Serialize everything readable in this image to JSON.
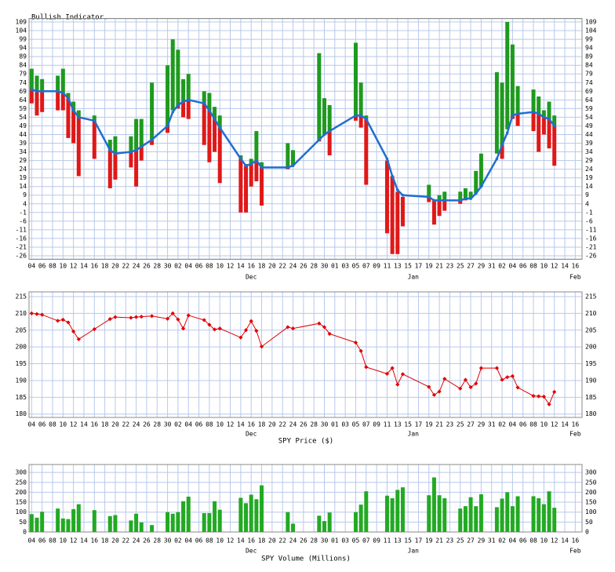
{
  "chart_data": [
    {
      "type": "range_bar",
      "title": "Bullish Indicator.",
      "up_color": "#1e9a1e",
      "down_color": "#e01818",
      "line_color": "#1f6fd0",
      "xlim": [
        -0.5,
        105.3
      ],
      "ylim": [
        -28,
        111
      ],
      "grid": true,
      "xticks": [
        {
          "value": 0,
          "label": "04"
        },
        {
          "value": 2,
          "label": "06"
        },
        {
          "value": 4,
          "label": "08"
        },
        {
          "value": 6,
          "label": "10"
        },
        {
          "value": 8,
          "label": "12"
        },
        {
          "value": 10,
          "label": "14"
        },
        {
          "value": 12,
          "label": "16"
        },
        {
          "value": 14,
          "label": "18"
        },
        {
          "value": 16,
          "label": "20"
        },
        {
          "value": 18,
          "label": "22"
        },
        {
          "value": 20,
          "label": "24"
        },
        {
          "value": 22,
          "label": "26"
        },
        {
          "value": 24,
          "label": "28"
        },
        {
          "value": 26,
          "label": "30"
        },
        {
          "value": 28,
          "label": "02"
        },
        {
          "value": 30,
          "label": "04"
        },
        {
          "value": 32,
          "label": "06"
        },
        {
          "value": 34,
          "label": "08"
        },
        {
          "value": 36,
          "label": "10"
        },
        {
          "value": 38,
          "label": "12"
        },
        {
          "value": 40,
          "label": "14"
        },
        {
          "value": 42,
          "label": "16"
        },
        {
          "value": 44,
          "label": "18"
        },
        {
          "value": 46,
          "label": "20"
        },
        {
          "value": 48,
          "label": "22"
        },
        {
          "value": 50,
          "label": "24"
        },
        {
          "value": 52,
          "label": "26"
        },
        {
          "value": 54,
          "label": "28"
        },
        {
          "value": 56,
          "label": "30"
        },
        {
          "value": 58,
          "label": "01"
        },
        {
          "value": 60,
          "label": "03"
        },
        {
          "value": 62,
          "label": "05"
        },
        {
          "value": 64,
          "label": "07"
        },
        {
          "value": 66,
          "label": "09"
        },
        {
          "value": 68,
          "label": "11"
        },
        {
          "value": 70,
          "label": "13"
        },
        {
          "value": 72,
          "label": "15"
        },
        {
          "value": 74,
          "label": "17"
        },
        {
          "value": 76,
          "label": "19"
        },
        {
          "value": 78,
          "label": "21"
        },
        {
          "value": 80,
          "label": "23"
        },
        {
          "value": 82,
          "label": "25"
        },
        {
          "value": 84,
          "label": "27"
        },
        {
          "value": 86,
          "label": "29"
        },
        {
          "value": 88,
          "label": "31"
        },
        {
          "value": 90,
          "label": "02"
        },
        {
          "value": 92,
          "label": "04"
        },
        {
          "value": 94,
          "label": "06"
        },
        {
          "value": 96,
          "label": "08"
        },
        {
          "value": 98,
          "label": "10"
        },
        {
          "value": 100,
          "label": "12"
        },
        {
          "value": 102,
          "label": "14"
        },
        {
          "value": 104,
          "label": "16"
        }
      ],
      "month_labels": [
        {
          "value": 42,
          "label": "Dec"
        },
        {
          "value": 73,
          "label": "Jan"
        },
        {
          "value": 104,
          "label": "Feb"
        }
      ],
      "yticks": [
        109,
        104,
        99,
        94,
        89,
        84,
        79,
        74,
        69,
        64,
        59,
        54,
        49,
        44,
        39,
        34,
        29,
        24,
        19,
        14,
        9,
        4,
        -1,
        -6,
        -11,
        -16,
        -21,
        -26
      ],
      "x": [
        0,
        1,
        2,
        5,
        6,
        7,
        8,
        9,
        12,
        15,
        16,
        19,
        20,
        21,
        23,
        26,
        27,
        28,
        29,
        30,
        33,
        34,
        35,
        36,
        40,
        41,
        42,
        43,
        44,
        49,
        50,
        55,
        56,
        57,
        62,
        63,
        64,
        68,
        69,
        70,
        71,
        76,
        77,
        78,
        79,
        82,
        83,
        84,
        85,
        86,
        89,
        90,
        91,
        92,
        93,
        96,
        97,
        98,
        99,
        100
      ],
      "high": [
        82,
        78,
        76,
        78,
        82,
        68,
        63,
        58,
        55,
        41,
        43,
        43,
        53,
        53,
        74,
        84,
        99,
        93,
        76,
        79,
        69,
        68,
        60,
        55,
        32,
        27,
        30,
        46,
        28,
        39,
        35,
        91,
        65,
        61,
        97,
        74,
        55,
        29,
        20,
        11,
        8,
        15,
        6,
        9,
        11,
        11,
        13,
        11,
        23,
        33,
        80,
        74,
        109,
        96,
        72,
        70,
        66,
        58,
        63,
        55
      ],
      "low": [
        62,
        55,
        57,
        58,
        58,
        42,
        39,
        20,
        30,
        13,
        18,
        25,
        14,
        29,
        38,
        45,
        58,
        59,
        54,
        53,
        38,
        28,
        34,
        16,
        -1,
        -1,
        14,
        17,
        3,
        24,
        26,
        40,
        44,
        32,
        52,
        48,
        15,
        -13,
        -25,
        -25,
        -9,
        5,
        -8,
        -3,
        0,
        4,
        6,
        7,
        10,
        14,
        33,
        30,
        47,
        53,
        49,
        46,
        34,
        44,
        36,
        26
      ],
      "average": [
        70,
        69,
        69,
        69,
        68,
        65,
        58,
        54,
        52,
        35,
        33,
        34,
        35,
        37,
        41,
        49,
        57,
        61,
        63,
        64,
        62,
        58,
        53,
        48,
        30,
        26,
        27,
        29,
        25,
        25,
        26,
        41,
        44,
        46,
        55,
        55,
        53,
        30,
        20,
        12,
        9,
        8,
        6,
        6,
        6,
        6,
        7,
        7,
        10,
        14,
        30,
        38,
        45,
        55,
        56,
        57,
        56,
        54,
        53,
        49
      ]
    },
    {
      "type": "line",
      "title": "SPY Price ($)",
      "color": "#e00000",
      "xlim": [
        -0.5,
        105.3
      ],
      "ylim": [
        179,
        216.4
      ],
      "grid": true,
      "xticks": [
        {
          "value": 0,
          "label": "04"
        },
        {
          "value": 2,
          "label": "06"
        },
        {
          "value": 4,
          "label": "08"
        },
        {
          "value": 6,
          "label": "10"
        },
        {
          "value": 8,
          "label": "12"
        },
        {
          "value": 10,
          "label": "14"
        },
        {
          "value": 12,
          "label": "16"
        },
        {
          "value": 14,
          "label": "18"
        },
        {
          "value": 16,
          "label": "20"
        },
        {
          "value": 18,
          "label": "22"
        },
        {
          "value": 20,
          "label": "24"
        },
        {
          "value": 22,
          "label": "26"
        },
        {
          "value": 24,
          "label": "28"
        },
        {
          "value": 26,
          "label": "30"
        },
        {
          "value": 28,
          "label": "02"
        },
        {
          "value": 30,
          "label": "04"
        },
        {
          "value": 32,
          "label": "06"
        },
        {
          "value": 34,
          "label": "08"
        },
        {
          "value": 36,
          "label": "10"
        },
        {
          "value": 38,
          "label": "12"
        },
        {
          "value": 40,
          "label": "14"
        },
        {
          "value": 42,
          "label": "16"
        },
        {
          "value": 44,
          "label": "18"
        },
        {
          "value": 46,
          "label": "20"
        },
        {
          "value": 48,
          "label": "22"
        },
        {
          "value": 50,
          "label": "24"
        },
        {
          "value": 52,
          "label": "26"
        },
        {
          "value": 54,
          "label": "28"
        },
        {
          "value": 56,
          "label": "30"
        },
        {
          "value": 58,
          "label": "01"
        },
        {
          "value": 60,
          "label": "03"
        },
        {
          "value": 62,
          "label": "05"
        },
        {
          "value": 64,
          "label": "07"
        },
        {
          "value": 66,
          "label": "09"
        },
        {
          "value": 68,
          "label": "11"
        },
        {
          "value": 70,
          "label": "13"
        },
        {
          "value": 72,
          "label": "15"
        },
        {
          "value": 74,
          "label": "17"
        },
        {
          "value": 76,
          "label": "19"
        },
        {
          "value": 78,
          "label": "21"
        },
        {
          "value": 80,
          "label": "23"
        },
        {
          "value": 82,
          "label": "25"
        },
        {
          "value": 84,
          "label": "27"
        },
        {
          "value": 86,
          "label": "29"
        },
        {
          "value": 88,
          "label": "31"
        },
        {
          "value": 90,
          "label": "02"
        },
        {
          "value": 92,
          "label": "04"
        },
        {
          "value": 94,
          "label": "06"
        },
        {
          "value": 96,
          "label": "08"
        },
        {
          "value": 98,
          "label": "10"
        },
        {
          "value": 100,
          "label": "12"
        },
        {
          "value": 102,
          "label": "14"
        },
        {
          "value": 104,
          "label": "16"
        }
      ],
      "month_labels": [
        {
          "value": 42,
          "label": "Dec"
        },
        {
          "value": 73,
          "label": "Jan"
        },
        {
          "value": 104,
          "label": "Feb"
        }
      ],
      "yticks": [
        215,
        210,
        205,
        200,
        195,
        190,
        185,
        180
      ],
      "x": [
        0,
        1,
        2,
        5,
        6,
        7,
        8,
        9,
        12,
        15,
        16,
        19,
        20,
        21,
        23,
        26,
        27,
        28,
        29,
        30,
        33,
        34,
        35,
        36,
        40,
        41,
        42,
        43,
        44,
        49,
        50,
        55,
        56,
        57,
        62,
        63,
        64,
        68,
        69,
        70,
        71,
        76,
        77,
        78,
        79,
        82,
        83,
        84,
        85,
        86,
        89,
        90,
        91,
        92,
        93,
        96,
        97,
        98,
        99,
        100
      ],
      "values": [
        210.0,
        209.8,
        209.6,
        207.8,
        208.1,
        207.3,
        204.6,
        202.3,
        205.3,
        208.3,
        208.9,
        208.7,
        208.9,
        209.0,
        209.2,
        208.4,
        210.0,
        208.2,
        205.5,
        209.4,
        208.0,
        206.6,
        205.2,
        205.5,
        202.8,
        205.0,
        207.7,
        204.8,
        200.1,
        205.9,
        205.5,
        207.0,
        205.9,
        203.9,
        201.3,
        198.8,
        194.0,
        192.0,
        193.7,
        188.8,
        191.9,
        188.1,
        185.7,
        186.7,
        190.5,
        187.6,
        190.2,
        188.0,
        189.1,
        193.7,
        193.7,
        190.2,
        191.0,
        191.3,
        187.9,
        185.4,
        185.3,
        185.2,
        182.9,
        186.6
      ]
    },
    {
      "type": "bar",
      "title": "SPY Volume (Millions)",
      "color": "#22aa22",
      "xlim": [
        -0.5,
        105.3
      ],
      "ylim": [
        0,
        340
      ],
      "grid": true,
      "xticks": [
        {
          "value": 0,
          "label": "04"
        },
        {
          "value": 2,
          "label": "06"
        },
        {
          "value": 4,
          "label": "08"
        },
        {
          "value": 6,
          "label": "10"
        },
        {
          "value": 8,
          "label": "12"
        },
        {
          "value": 10,
          "label": "14"
        },
        {
          "value": 12,
          "label": "16"
        },
        {
          "value": 14,
          "label": "18"
        },
        {
          "value": 16,
          "label": "20"
        },
        {
          "value": 18,
          "label": "22"
        },
        {
          "value": 20,
          "label": "24"
        },
        {
          "value": 22,
          "label": "26"
        },
        {
          "value": 24,
          "label": "28"
        },
        {
          "value": 26,
          "label": "30"
        },
        {
          "value": 28,
          "label": "02"
        },
        {
          "value": 30,
          "label": "04"
        },
        {
          "value": 32,
          "label": "06"
        },
        {
          "value": 34,
          "label": "08"
        },
        {
          "value": 36,
          "label": "10"
        },
        {
          "value": 38,
          "label": "12"
        },
        {
          "value": 40,
          "label": "14"
        },
        {
          "value": 42,
          "label": "16"
        },
        {
          "value": 44,
          "label": "18"
        },
        {
          "value": 46,
          "label": "20"
        },
        {
          "value": 48,
          "label": "22"
        },
        {
          "value": 50,
          "label": "24"
        },
        {
          "value": 52,
          "label": "26"
        },
        {
          "value": 54,
          "label": "28"
        },
        {
          "value": 56,
          "label": "30"
        },
        {
          "value": 58,
          "label": "01"
        },
        {
          "value": 60,
          "label": "03"
        },
        {
          "value": 62,
          "label": "05"
        },
        {
          "value": 64,
          "label": "07"
        },
        {
          "value": 66,
          "label": "09"
        },
        {
          "value": 68,
          "label": "11"
        },
        {
          "value": 70,
          "label": "13"
        },
        {
          "value": 72,
          "label": "15"
        },
        {
          "value": 74,
          "label": "17"
        },
        {
          "value": 76,
          "label": "19"
        },
        {
          "value": 78,
          "label": "21"
        },
        {
          "value": 80,
          "label": "23"
        },
        {
          "value": 82,
          "label": "25"
        },
        {
          "value": 84,
          "label": "27"
        },
        {
          "value": 86,
          "label": "29"
        },
        {
          "value": 88,
          "label": "31"
        },
        {
          "value": 90,
          "label": "02"
        },
        {
          "value": 92,
          "label": "04"
        },
        {
          "value": 94,
          "label": "06"
        },
        {
          "value": 96,
          "label": "08"
        },
        {
          "value": 98,
          "label": "10"
        },
        {
          "value": 100,
          "label": "12"
        },
        {
          "value": 102,
          "label": "14"
        },
        {
          "value": 104,
          "label": "16"
        }
      ],
      "month_labels": [
        {
          "value": 42,
          "label": "Dec"
        },
        {
          "value": 73,
          "label": "Jan"
        },
        {
          "value": 104,
          "label": "Feb"
        }
      ],
      "yticks": [
        300,
        250,
        200,
        150,
        100,
        50,
        0
      ],
      "x": [
        0,
        1,
        2,
        5,
        6,
        7,
        8,
        9,
        12,
        15,
        16,
        19,
        20,
        21,
        23,
        26,
        27,
        28,
        29,
        30,
        33,
        34,
        35,
        36,
        40,
        41,
        42,
        43,
        44,
        49,
        50,
        55,
        56,
        57,
        62,
        63,
        64,
        68,
        69,
        70,
        71,
        76,
        77,
        78,
        79,
        82,
        83,
        84,
        85,
        86,
        89,
        90,
        91,
        92,
        93,
        96,
        97,
        98,
        99,
        100
      ],
      "values": [
        90,
        72,
        102,
        118,
        68,
        65,
        115,
        140,
        110,
        80,
        85,
        58,
        92,
        48,
        35,
        100,
        92,
        100,
        155,
        178,
        95,
        95,
        155,
        112,
        172,
        145,
        188,
        165,
        235,
        100,
        42,
        82,
        55,
        98,
        100,
        138,
        205,
        183,
        170,
        212,
        225,
        185,
        275,
        185,
        170,
        118,
        130,
        175,
        130,
        190,
        125,
        168,
        200,
        130,
        180,
        180,
        170,
        140,
        205,
        122
      ]
    }
  ]
}
